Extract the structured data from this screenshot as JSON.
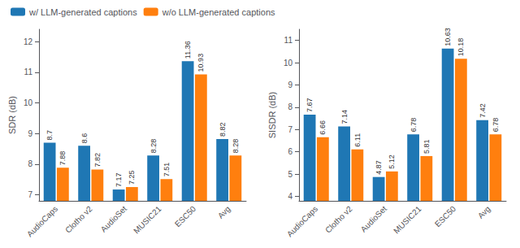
{
  "chart_data": [
    {
      "type": "bar",
      "categories": [
        "AudioCaps",
        "Clotho v2",
        "AudioSet",
        "MUSIC21",
        "ESC50",
        "Avg"
      ],
      "series": [
        {
          "name": "w/ LLM-generated captions",
          "color": "#1f77b4",
          "values": [
            8.7,
            8.6,
            7.17,
            8.28,
            11.36,
            8.82
          ]
        },
        {
          "name": "w/o LLM-generated captions",
          "color": "#ff7f0e",
          "values": [
            7.88,
            7.82,
            7.25,
            7.51,
            10.93,
            8.28
          ]
        }
      ],
      "ylabel": "SDR (dB)",
      "ylim": [
        6.8,
        12.4
      ],
      "yticks": [
        7,
        8,
        9,
        10,
        11,
        12
      ],
      "data_labels": true,
      "grid": false,
      "legend": "upper left"
    },
    {
      "type": "bar",
      "categories": [
        "AudioCaps",
        "Clotho v2",
        "AudioSet",
        "MUSIC21",
        "ESC50",
        "Avg"
      ],
      "series": [
        {
          "color": "#1f77b4",
          "values": [
            7.67,
            7.14,
            4.87,
            6.78,
            10.63,
            7.42
          ]
        },
        {
          "color": "#ff7f0e",
          "values": [
            6.66,
            6.11,
            5.12,
            5.81,
            10.18,
            6.78
          ]
        }
      ],
      "ylabel": "SISDR (dB)",
      "ylim": [
        3.8,
        11.5
      ],
      "yticks": [
        4,
        5,
        6,
        7,
        8,
        9,
        10,
        11
      ],
      "data_labels": true,
      "grid": false
    }
  ]
}
